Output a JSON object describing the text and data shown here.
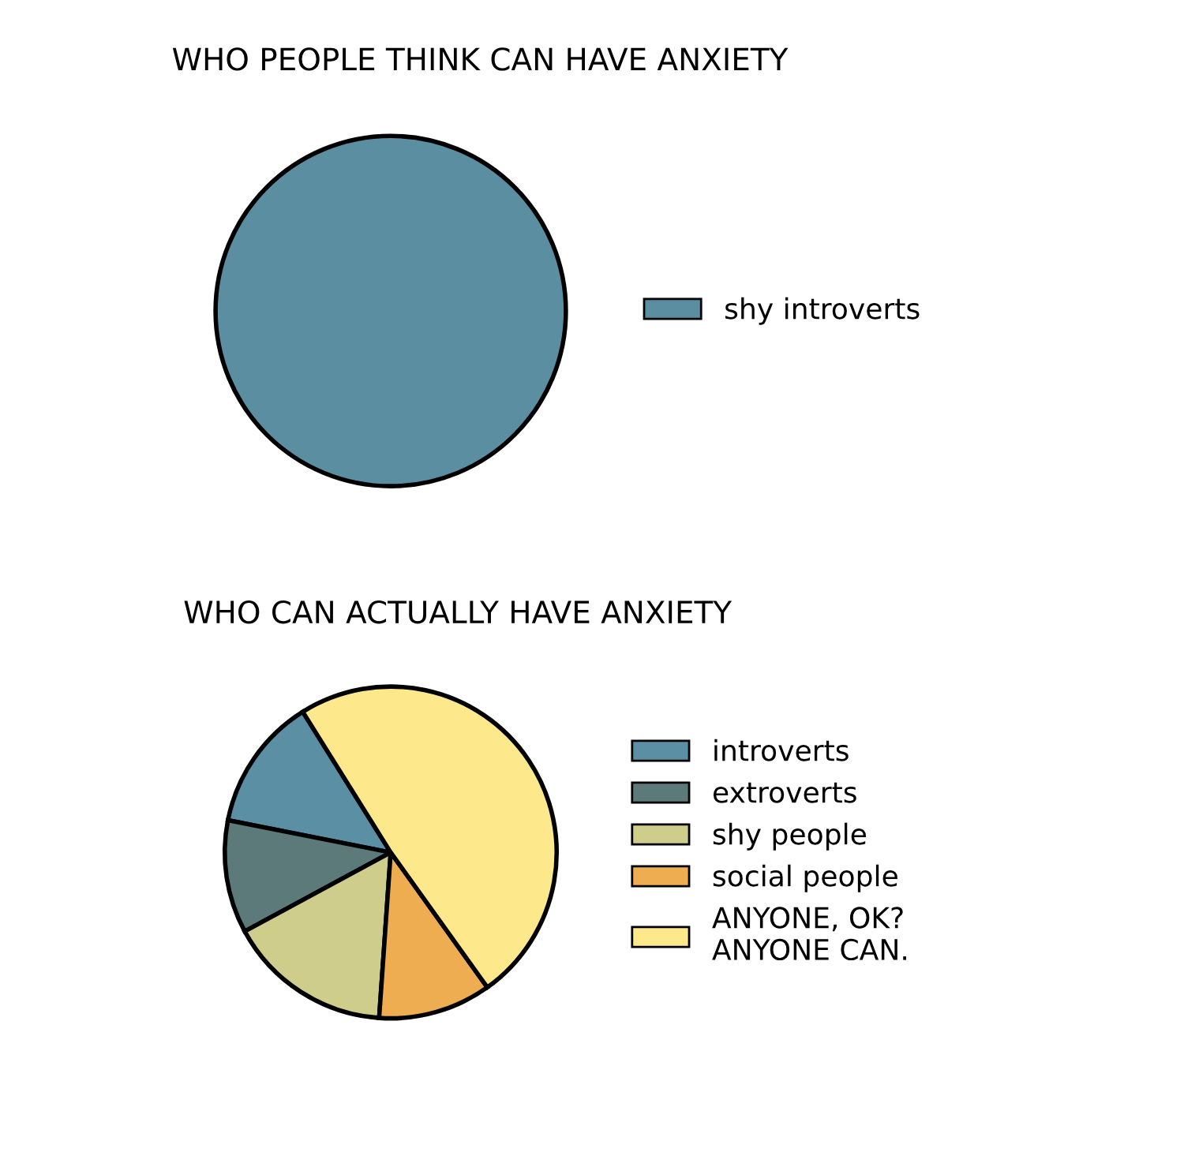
{
  "chart_data": [
    {
      "type": "pie",
      "title": "WHO PEOPLE THINK CAN HAVE ANXIETY",
      "categories": [
        "shy introverts"
      ],
      "values": [
        100
      ],
      "colors": [
        "#5b8ea0"
      ],
      "legend": "right"
    },
    {
      "type": "pie",
      "title": "WHO CAN ACTUALLY HAVE ANXIETY",
      "categories": [
        "introverts",
        "extroverts",
        "shy people",
        "social people",
        "ANYONE, OK?\nANYONE CAN."
      ],
      "values": [
        13,
        11,
        16,
        11,
        49
      ],
      "colors": [
        "#5b8fa3",
        "#5c7a7a",
        "#cfcd8c",
        "#efad51",
        "#fde98c"
      ],
      "legend": "right"
    }
  ]
}
